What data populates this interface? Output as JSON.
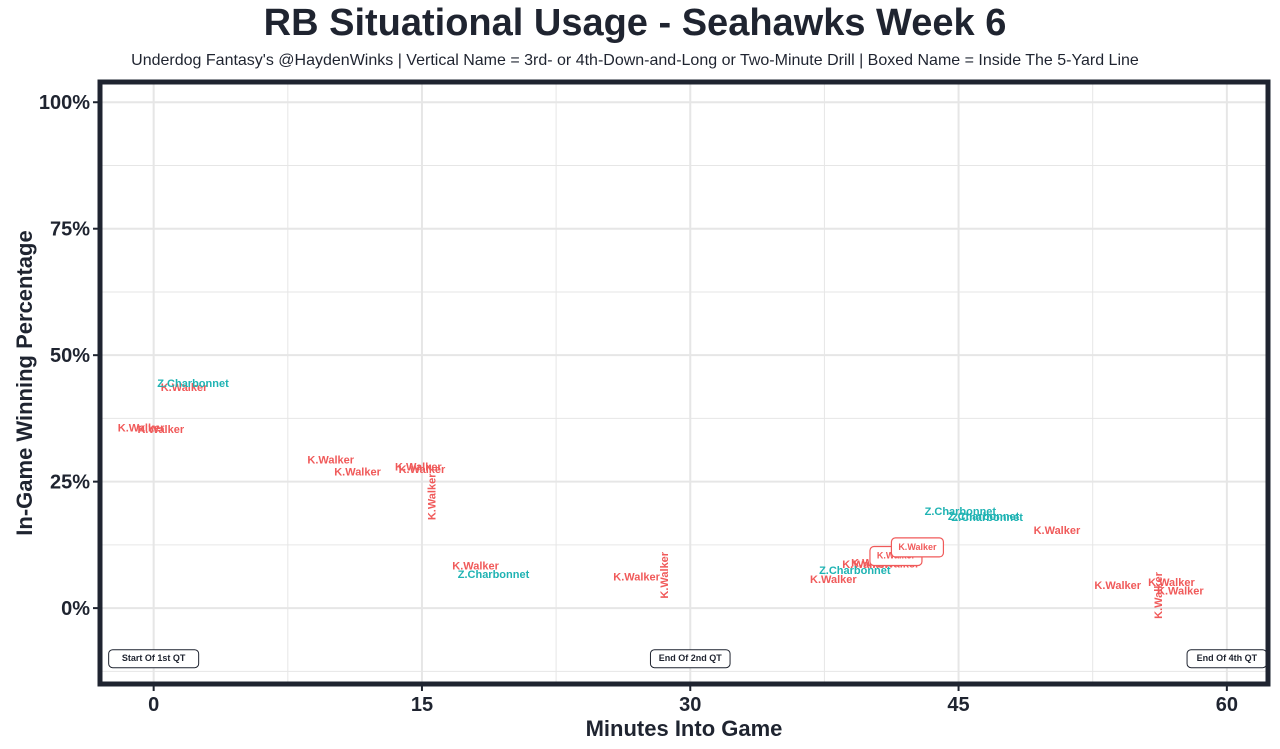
{
  "chart_data": {
    "type": "scatter",
    "title": "RB Situational Usage - Seahawks Week 6",
    "subtitle": "Underdog Fantasy's @HaydenWinks | Vertical Name = 3rd- or 4th-Down-and-Long or Two-Minute Drill | Boxed Name = Inside The 5-Yard Line",
    "xlabel": "Minutes Into Game",
    "ylabel": "In-Game Winning Percentage",
    "xlim": [
      -3,
      62.3
    ],
    "ylim": [
      -15,
      104
    ],
    "x_ticks": [
      0,
      15,
      30,
      45,
      60
    ],
    "x_tick_labels": [
      "0",
      "15",
      "30",
      "45",
      "60"
    ],
    "y_ticks": [
      0,
      25,
      50,
      75,
      100
    ],
    "y_tick_labels": [
      "0%",
      "25%",
      "50%",
      "75%",
      "100%"
    ],
    "grid": true,
    "legend": "none",
    "colors": {
      "K.Walker": "#f05a5a",
      "Z.Charbonnet": "#1fb3b3",
      "axis": "#1f2430",
      "grid": "#e6e6e6"
    },
    "series": [
      {
        "name": "K.Walker",
        "points": [
          {
            "x": 1.7,
            "y": 43.5,
            "style": "normal"
          },
          {
            "x": -0.7,
            "y": 35.5,
            "style": "normal"
          },
          {
            "x": 0.4,
            "y": 35.2,
            "style": "normal"
          },
          {
            "x": 9.9,
            "y": 29.2,
            "style": "normal"
          },
          {
            "x": 11.4,
            "y": 26.8,
            "style": "normal"
          },
          {
            "x": 14.8,
            "y": 27.8,
            "style": "normal"
          },
          {
            "x": 15.0,
            "y": 27.3,
            "style": "normal"
          },
          {
            "x": 15.6,
            "y": 22.0,
            "style": "vertical"
          },
          {
            "x": 18.0,
            "y": 8.2,
            "style": "normal"
          },
          {
            "x": 27.0,
            "y": 6.0,
            "style": "normal"
          },
          {
            "x": 28.6,
            "y": 6.5,
            "style": "vertical"
          },
          {
            "x": 38.0,
            "y": 5.5,
            "style": "normal"
          },
          {
            "x": 39.8,
            "y": 8.5,
            "style": "normal"
          },
          {
            "x": 40.3,
            "y": 8.8,
            "style": "normal"
          },
          {
            "x": 41.5,
            "y": 8.6,
            "style": "normal"
          },
          {
            "x": 41.5,
            "y": 10.3,
            "style": "boxed"
          },
          {
            "x": 42.7,
            "y": 12.0,
            "style": "boxed"
          },
          {
            "x": 50.5,
            "y": 15.2,
            "style": "normal"
          },
          {
            "x": 53.9,
            "y": 4.4,
            "style": "normal"
          },
          {
            "x": 56.2,
            "y": 2.5,
            "style": "vertical"
          },
          {
            "x": 56.9,
            "y": 4.9,
            "style": "normal"
          },
          {
            "x": 57.4,
            "y": 3.3,
            "style": "normal"
          }
        ]
      },
      {
        "name": "Z.Charbonnet",
        "points": [
          {
            "x": 2.2,
            "y": 44.3,
            "style": "normal"
          },
          {
            "x": 19.0,
            "y": 6.5,
            "style": "normal"
          },
          {
            "x": 39.2,
            "y": 7.3,
            "style": "normal"
          },
          {
            "x": 45.1,
            "y": 19.0,
            "style": "normal"
          },
          {
            "x": 46.4,
            "y": 18.0,
            "style": "normal"
          },
          {
            "x": 46.6,
            "y": 17.8,
            "style": "normal"
          }
        ]
      }
    ],
    "annotations": [
      {
        "label": "Start Of 1st QT",
        "x": 0,
        "y": -10
      },
      {
        "label": "End Of 2nd QT",
        "x": 30,
        "y": -10
      },
      {
        "label": "End Of 4th QT",
        "x": 60,
        "y": -10
      }
    ]
  }
}
